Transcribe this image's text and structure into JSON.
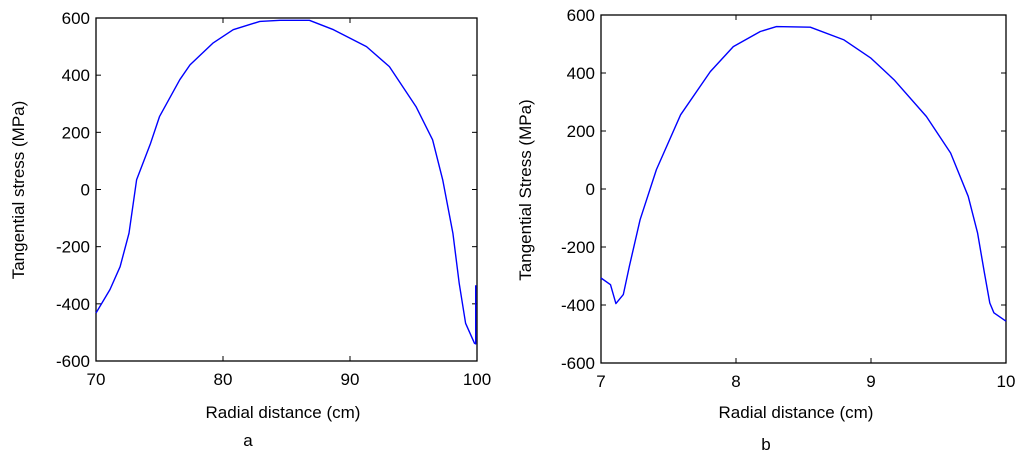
{
  "chart_data": [
    {
      "type": "line",
      "panel_label": "a",
      "xlabel": "Radial distance (cm)",
      "ylabel": "Tangential stress (MPa)",
      "xlim": [
        70,
        100
      ],
      "ylim": [
        -600,
        600
      ],
      "xticks": [
        "70",
        "80",
        "90",
        "100"
      ],
      "yticks": [
        "-600",
        "-400",
        "-200",
        "0",
        "200",
        "400",
        "600"
      ],
      "grid": false,
      "line_color": "#0000ff",
      "series": [
        {
          "x": [
            70,
            71.1,
            71.9,
            72.6,
            73.2,
            74.3,
            75,
            76.6,
            77.4,
            79.2,
            80.8,
            82.9,
            84.5,
            86.8,
            88.7,
            91.3,
            93.1,
            95.2,
            96.5,
            97.3,
            98.1,
            98.6,
            99.1,
            99.8,
            99.9,
            99.9
          ],
          "y": [
            -432,
            -350,
            -270,
            -153,
            34,
            162,
            255,
            384,
            436,
            512,
            559,
            588,
            592,
            592,
            559,
            500,
            430,
            290,
            174,
            34,
            -153,
            -328,
            -468,
            -538,
            -540,
            -335
          ]
        }
      ]
    },
    {
      "type": "line",
      "panel_label": "b",
      "xlabel": "Radial distance (cm)",
      "ylabel": "Tangential Stress (MPa)",
      "xlim": [
        7,
        10
      ],
      "ylim": [
        -600,
        600
      ],
      "xticks": [
        "7",
        "8",
        "9",
        "10"
      ],
      "yticks": [
        "-600",
        "-400",
        "-200",
        "0",
        "200",
        "400",
        "600"
      ],
      "grid": false,
      "line_color": "#0000ff",
      "series": [
        {
          "x": [
            7.0,
            7.07,
            7.11,
            7.165,
            7.21,
            7.29,
            7.41,
            7.59,
            7.81,
            7.98,
            8.18,
            8.3,
            8.55,
            8.8,
            9.0,
            9.17,
            9.41,
            9.59,
            9.72,
            9.79,
            9.84,
            9.88,
            9.91,
            10.0
          ],
          "y": [
            -307,
            -330,
            -395,
            -364,
            -266,
            -106,
            67,
            256,
            405,
            491,
            543,
            560,
            558,
            514,
            451,
            377,
            250,
            124,
            -25,
            -152,
            -289,
            -393,
            -427,
            -456
          ]
        }
      ]
    }
  ]
}
